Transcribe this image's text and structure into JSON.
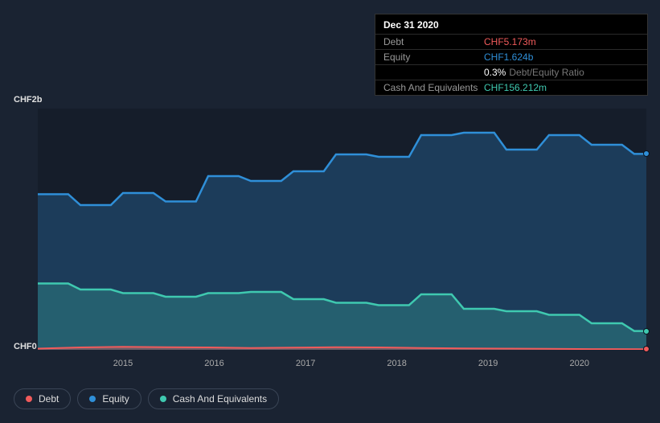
{
  "tooltip": {
    "date": "Dec 31 2020",
    "rows": [
      {
        "label": "Debt",
        "value": "CHF5.173m",
        "color": "#f15b5b",
        "extra": ""
      },
      {
        "label": "Equity",
        "value": "CHF1.624b",
        "color": "#2f8fd8",
        "extra": ""
      },
      {
        "label": "",
        "value": "0.3%",
        "color": "#ffffff",
        "extra": "Debt/Equity Ratio"
      },
      {
        "label": "Cash And Equivalents",
        "value": "CHF156.212m",
        "color": "#3fc9b0",
        "extra": ""
      }
    ]
  },
  "chart": {
    "type": "area",
    "background": "#151d2a",
    "y_axis": {
      "top_label": "CHF2b",
      "bottom_label": "CHF0",
      "min": 0,
      "max": 2000
    },
    "x_axis": {
      "ticks": [
        {
          "label": "2015",
          "pos_pct": 14
        },
        {
          "label": "2016",
          "pos_pct": 29
        },
        {
          "label": "2017",
          "pos_pct": 44
        },
        {
          "label": "2018",
          "pos_pct": 59
        },
        {
          "label": "2019",
          "pos_pct": 74
        },
        {
          "label": "2020",
          "pos_pct": 89
        }
      ]
    },
    "series": [
      {
        "name": "Equity",
        "color": "#2f8fd8",
        "fill": "rgba(47,143,216,0.28)",
        "stroke_width": 2.5,
        "points": [
          {
            "x": 0,
            "y": 1290
          },
          {
            "x": 5,
            "y": 1290
          },
          {
            "x": 7,
            "y": 1200
          },
          {
            "x": 12,
            "y": 1200
          },
          {
            "x": 14,
            "y": 1300
          },
          {
            "x": 19,
            "y": 1300
          },
          {
            "x": 21,
            "y": 1230
          },
          {
            "x": 26,
            "y": 1230
          },
          {
            "x": 28,
            "y": 1440
          },
          {
            "x": 33,
            "y": 1440
          },
          {
            "x": 35,
            "y": 1400
          },
          {
            "x": 40,
            "y": 1400
          },
          {
            "x": 42,
            "y": 1480
          },
          {
            "x": 47,
            "y": 1480
          },
          {
            "x": 49,
            "y": 1620
          },
          {
            "x": 54,
            "y": 1620
          },
          {
            "x": 56,
            "y": 1600
          },
          {
            "x": 61,
            "y": 1600
          },
          {
            "x": 63,
            "y": 1780
          },
          {
            "x": 68,
            "y": 1780
          },
          {
            "x": 70,
            "y": 1800
          },
          {
            "x": 75,
            "y": 1800
          },
          {
            "x": 77,
            "y": 1660
          },
          {
            "x": 82,
            "y": 1660
          },
          {
            "x": 84,
            "y": 1780
          },
          {
            "x": 89,
            "y": 1780
          },
          {
            "x": 91,
            "y": 1700
          },
          {
            "x": 96,
            "y": 1700
          },
          {
            "x": 98,
            "y": 1624
          },
          {
            "x": 100,
            "y": 1624
          }
        ],
        "end_dot": true
      },
      {
        "name": "Cash And Equivalents",
        "color": "#3fc9b0",
        "fill": "rgba(63,201,176,0.25)",
        "stroke_width": 2.5,
        "points": [
          {
            "x": 0,
            "y": 550
          },
          {
            "x": 5,
            "y": 550
          },
          {
            "x": 7,
            "y": 500
          },
          {
            "x": 12,
            "y": 500
          },
          {
            "x": 14,
            "y": 470
          },
          {
            "x": 19,
            "y": 470
          },
          {
            "x": 21,
            "y": 440
          },
          {
            "x": 26,
            "y": 440
          },
          {
            "x": 28,
            "y": 470
          },
          {
            "x": 33,
            "y": 470
          },
          {
            "x": 35,
            "y": 480
          },
          {
            "x": 40,
            "y": 480
          },
          {
            "x": 42,
            "y": 420
          },
          {
            "x": 47,
            "y": 420
          },
          {
            "x": 49,
            "y": 390
          },
          {
            "x": 54,
            "y": 390
          },
          {
            "x": 56,
            "y": 370
          },
          {
            "x": 61,
            "y": 370
          },
          {
            "x": 63,
            "y": 460
          },
          {
            "x": 68,
            "y": 460
          },
          {
            "x": 70,
            "y": 340
          },
          {
            "x": 75,
            "y": 340
          },
          {
            "x": 77,
            "y": 320
          },
          {
            "x": 82,
            "y": 320
          },
          {
            "x": 84,
            "y": 290
          },
          {
            "x": 89,
            "y": 290
          },
          {
            "x": 91,
            "y": 220
          },
          {
            "x": 96,
            "y": 220
          },
          {
            "x": 98,
            "y": 156
          },
          {
            "x": 100,
            "y": 156
          }
        ],
        "end_dot": true
      },
      {
        "name": "Debt",
        "color": "#f15b5b",
        "fill": "rgba(241,91,91,0.35)",
        "stroke_width": 2,
        "points": [
          {
            "x": 0,
            "y": 10
          },
          {
            "x": 7,
            "y": 20
          },
          {
            "x": 14,
            "y": 25
          },
          {
            "x": 21,
            "y": 22
          },
          {
            "x": 28,
            "y": 20
          },
          {
            "x": 35,
            "y": 15
          },
          {
            "x": 42,
            "y": 18
          },
          {
            "x": 49,
            "y": 22
          },
          {
            "x": 56,
            "y": 20
          },
          {
            "x": 63,
            "y": 15
          },
          {
            "x": 70,
            "y": 12
          },
          {
            "x": 77,
            "y": 10
          },
          {
            "x": 84,
            "y": 8
          },
          {
            "x": 91,
            "y": 6
          },
          {
            "x": 100,
            "y": 5
          }
        ],
        "end_dot": true
      }
    ]
  },
  "legend": [
    {
      "label": "Debt",
      "color": "#f15b5b"
    },
    {
      "label": "Equity",
      "color": "#2f8fd8"
    },
    {
      "label": "Cash And Equivalents",
      "color": "#3fc9b0"
    }
  ]
}
